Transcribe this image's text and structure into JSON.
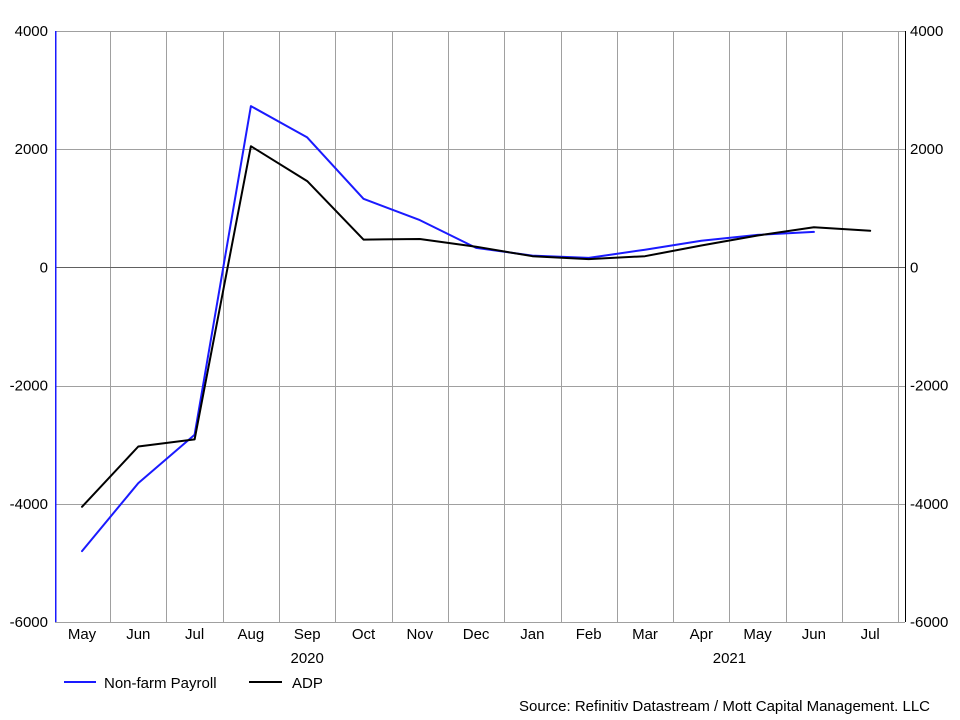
{
  "chart_data": {
    "type": "line",
    "title": "",
    "xlabel": "",
    "ylabel": "",
    "categories": [
      "May",
      "Jun",
      "Jul",
      "Aug",
      "Sep",
      "Oct",
      "Nov",
      "Dec",
      "Jan",
      "Feb",
      "Mar",
      "Apr",
      "May",
      "Jun",
      "Jul"
    ],
    "year_labels": [
      {
        "label": "2020",
        "category_index": 4
      },
      {
        "label": "2021",
        "category_index": 11.5
      }
    ],
    "ylim": [
      -6000,
      4000
    ],
    "yticks": [
      4000,
      2000,
      0,
      -2000,
      -4000,
      -6000
    ],
    "ytick_labels_left": [
      "4000",
      "2000",
      "0",
      "-2000",
      "-4000",
      "-6000"
    ],
    "ytick_labels_right": [
      "4000",
      "2000",
      "0",
      "-2000",
      "-4000",
      "-6000"
    ],
    "grid": true,
    "legend_position": "bottom-left",
    "series": [
      {
        "name": "Non-farm Payroll",
        "color": "#1a1aff",
        "values": [
          -4800,
          -3650,
          -2830,
          2730,
          2200,
          1160,
          800,
          330,
          200,
          160,
          300,
          450,
          550,
          600,
          null
        ]
      },
      {
        "name": "ADP",
        "color": "#000000",
        "values": [
          -4050,
          -3030,
          -2910,
          2050,
          1460,
          470,
          480,
          350,
          190,
          140,
          190,
          370,
          540,
          680,
          620
        ]
      }
    ],
    "source": "Source: Refinitiv Datastream / Mott Capital Management. LLC"
  }
}
